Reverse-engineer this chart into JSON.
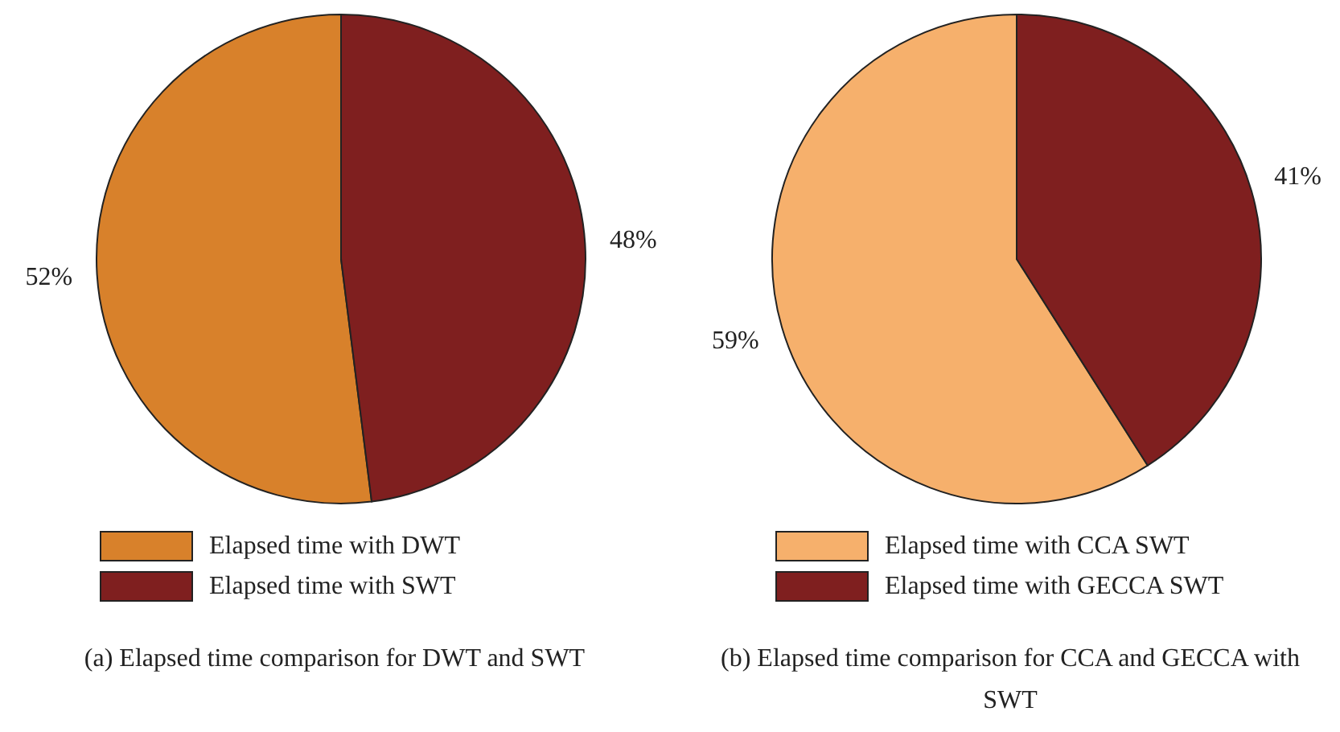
{
  "chart_data": [
    {
      "type": "pie",
      "title": "(a) Elapsed time comparison for DWT and SWT",
      "categories": [
        "Elapsed time with DWT",
        "Elapsed time with SWT"
      ],
      "values": [
        52,
        48
      ],
      "colors": [
        "#d8812b",
        "#7f1f1f"
      ],
      "value_labels": [
        "52%",
        "48%"
      ],
      "legend": "bottom"
    },
    {
      "type": "pie",
      "title": "(b) Elapsed time comparison for CCA and GECCA with SWT",
      "categories": [
        "Elapsed time with CCA SWT",
        "Elapsed time with GECCA SWT"
      ],
      "values": [
        59,
        41
      ],
      "colors": [
        "#f6b06c",
        "#7f1f1f"
      ],
      "value_labels": [
        "59%",
        "41%"
      ],
      "legend": "bottom"
    }
  ]
}
